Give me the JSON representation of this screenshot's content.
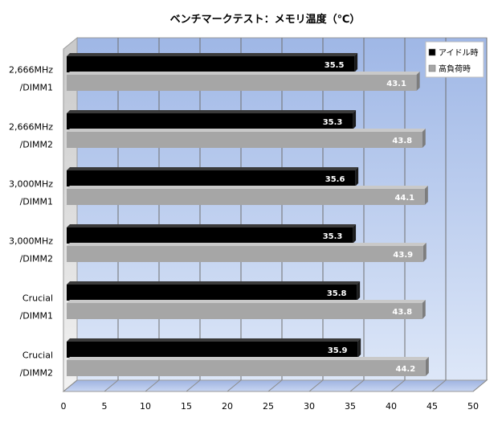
{
  "chart_data": {
    "type": "bar",
    "orientation": "horizontal",
    "title": "ベンチマークテスト：メモリ温度（℃）",
    "categories": [
      [
        "2,666MHz",
        "/DIMM1"
      ],
      [
        "2,666MHz",
        "/DIMM2"
      ],
      [
        "3,000MHz",
        "/DIMM1"
      ],
      [
        "3,000MHz",
        "/DIMM2"
      ],
      [
        "Crucial",
        "/DIMM1"
      ],
      [
        "Crucial",
        "/DIMM2"
      ]
    ],
    "series": [
      {
        "name": "アイドル時",
        "color": "#000000",
        "values": [
          35.5,
          35.3,
          35.6,
          35.3,
          35.8,
          35.9
        ]
      },
      {
        "name": "高負荷時",
        "color": "#a6a6a6",
        "values": [
          43.1,
          43.8,
          44.1,
          43.9,
          43.8,
          44.2
        ]
      }
    ],
    "xlim": [
      0,
      50
    ],
    "xticks": [
      0,
      5,
      10,
      15,
      20,
      25,
      30,
      35,
      40,
      45,
      50
    ],
    "legend_position": "top-right",
    "grid": true
  }
}
